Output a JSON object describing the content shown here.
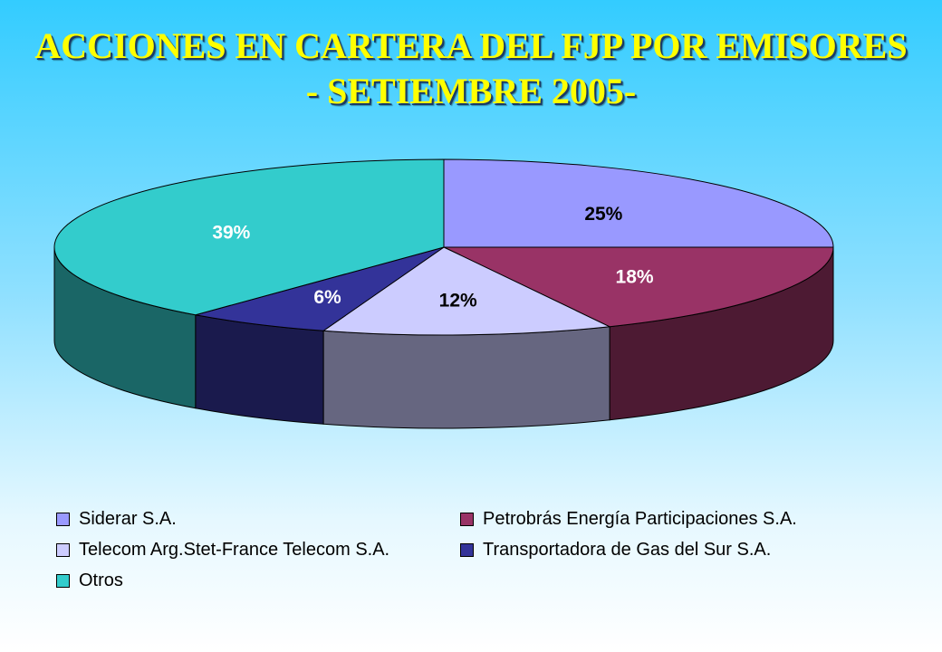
{
  "title": {
    "line1": "ACCIONES EN CARTERA DEL FJP POR EMISORES",
    "line2": "- SETIEMBRE 2005-"
  },
  "chart_data": {
    "type": "pie",
    "title": "ACCIONES EN CARTERA DEL FJP POR EMISORES - SETIEMBRE 2005-",
    "legend_position": "bottom",
    "series": [
      {
        "name": "Siderar S.A.",
        "value": 25,
        "label": "25%",
        "color": "#9999ff",
        "side_color": "#666688",
        "label_color": "#000000"
      },
      {
        "name": "Petrobrás Energía Participaciones S.A.",
        "value": 18,
        "label": "18%",
        "color": "#993366",
        "side_color": "#4d1a33",
        "label_color": "#ffffff"
      },
      {
        "name": "Telecom Arg.Stet-France Telecom S.A.",
        "value": 12,
        "label": "12%",
        "color": "#ccccff",
        "side_color": "#666680",
        "label_color": "#000000"
      },
      {
        "name": "Transportadora de Gas del Sur S.A.",
        "value": 6,
        "label": "6%",
        "color": "#333399",
        "side_color": "#1a1a4d",
        "label_color": "#ffffff"
      },
      {
        "name": "Otros",
        "value": 39,
        "label": "39%",
        "color": "#33cccc",
        "side_color": "#1a6666",
        "label_color": "#ffffff"
      }
    ]
  }
}
